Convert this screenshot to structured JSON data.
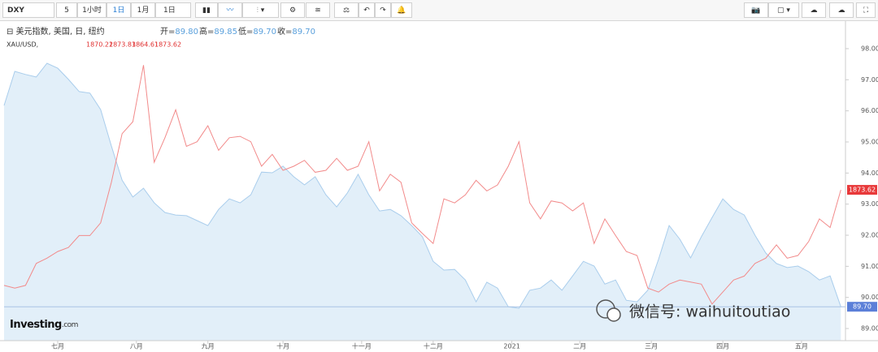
{
  "toolbar": {
    "symbol": "DXY",
    "buttons": [
      "5",
      "1小时",
      "1日",
      "1月",
      "1日"
    ],
    "active": 2
  },
  "chart_data": {
    "type": "line",
    "legend": [
      {
        "title": "美元指数, 美国, 日, 纽约",
        "ohlc": [
          {
            "label": "开=",
            "value": "89.80"
          },
          {
            "label": "高=",
            "value": "89.85"
          },
          {
            "label": "低=",
            "value": "89.70"
          },
          {
            "label": "收=",
            "value": "89.70"
          }
        ]
      },
      {
        "title": "XAU/USD,",
        "ohlc": [
          "1870.22",
          "1873.83",
          "1864.61",
          "1873.62"
        ]
      }
    ],
    "x": [
      0,
      3,
      6,
      9,
      12,
      15,
      18,
      21,
      24,
      27,
      30,
      33,
      36,
      39,
      42,
      45,
      48,
      51,
      54,
      57,
      60,
      63,
      66,
      69,
      72,
      75,
      78,
      81,
      84,
      87,
      90,
      93,
      96,
      99,
      102,
      105,
      108,
      111,
      114,
      117,
      120,
      123,
      126,
      129,
      132,
      135,
      138,
      141,
      144,
      147,
      150,
      153,
      156,
      159,
      162,
      165,
      168,
      171,
      174,
      177,
      180,
      183,
      186,
      189,
      192,
      195,
      198,
      201,
      204,
      207,
      210,
      213,
      216,
      219,
      222,
      225,
      228,
      231,
      234
    ],
    "xlim": [
      0,
      235.3
    ],
    "xticks": [
      {
        "value": 15,
        "label": "七月"
      },
      {
        "value": 37,
        "label": "八月"
      },
      {
        "value": 57,
        "label": "九月"
      },
      {
        "value": 78,
        "label": "十月"
      },
      {
        "value": 100,
        "label": "十一月"
      },
      {
        "value": 120,
        "label": "十二月"
      },
      {
        "value": 142,
        "label": "2021"
      },
      {
        "value": 161,
        "label": "二月"
      },
      {
        "value": 181,
        "label": "三月"
      },
      {
        "value": 201,
        "label": "四月"
      },
      {
        "value": 223,
        "label": "五月"
      }
    ],
    "ylim": [
      88.61,
      98.86
    ],
    "yticks": [
      {
        "value": 89,
        "label": "89.00"
      },
      {
        "value": 90,
        "label": "90.00"
      },
      {
        "value": 91,
        "label": "91.00"
      },
      {
        "value": 92,
        "label": "92.00"
      },
      {
        "value": 93,
        "label": "93.00"
      },
      {
        "value": 94,
        "label": "94.00"
      },
      {
        "value": 95,
        "label": "95.00"
      },
      {
        "value": 96,
        "label": "96.00"
      },
      {
        "value": 97,
        "label": "97.00"
      },
      {
        "value": 98,
        "label": "98.00"
      }
    ],
    "y2lim": [
      1647,
      2126
    ],
    "series": [
      {
        "name": "美元指数",
        "color": "#a9cdec",
        "fill": "#e2eff9",
        "area": true,
        "last_label": "89.70",
        "values": [
          96.17,
          97.27,
          97.17,
          97.09,
          97.53,
          97.37,
          97.01,
          96.62,
          96.57,
          96.04,
          94.87,
          93.77,
          93.23,
          93.51,
          93.04,
          92.73,
          92.65,
          92.63,
          92.47,
          92.31,
          92.83,
          93.17,
          93.04,
          93.3,
          94.03,
          94.01,
          94.22,
          93.88,
          93.62,
          93.88,
          93.3,
          92.91,
          93.36,
          93.96,
          93.3,
          92.78,
          92.83,
          92.63,
          92.31,
          91.95,
          91.16,
          90.88,
          90.9,
          90.56,
          89.86,
          90.49,
          90.3,
          89.7,
          89.65,
          90.23,
          90.3,
          90.56,
          90.23,
          90.69,
          91.16,
          91.01,
          90.43,
          90.56,
          89.91,
          89.86,
          90.23,
          91.22,
          92.31,
          91.87,
          91.27,
          91.95,
          92.57,
          93.17,
          92.83,
          92.65,
          92,
          91.43,
          91.09,
          90.96,
          91.01,
          90.83,
          90.56,
          90.69,
          89.7
        ]
      },
      {
        "name": "XAU/USD",
        "color": "#f28a8a",
        "axis": "y2",
        "last_label": "1873.62",
        "values": [
          1730,
          1726,
          1730,
          1763,
          1771,
          1781,
          1787,
          1805,
          1805,
          1824,
          1885,
          1958,
          1976,
          2061,
          1915,
          1952,
          1994,
          1939,
          1946,
          1970,
          1933,
          1952,
          1954,
          1946,
          1909,
          1927,
          1903,
          1909,
          1918,
          1900,
          1903,
          1921,
          1903,
          1909,
          1946,
          1872,
          1897,
          1885,
          1824,
          1808,
          1793,
          1860,
          1854,
          1866,
          1888,
          1872,
          1881,
          1909,
          1946,
          1854,
          1830,
          1857,
          1854,
          1842,
          1854,
          1793,
          1830,
          1805,
          1781,
          1775,
          1726,
          1720,
          1732,
          1738,
          1735,
          1732,
          1702,
          1720,
          1738,
          1744,
          1763,
          1771,
          1791,
          1771,
          1775,
          1796,
          1830,
          1817,
          1873.62
        ]
      }
    ],
    "logo": [
      "Investing",
      ".com"
    ],
    "watermark": "微信号: waihuitoutiao"
  }
}
